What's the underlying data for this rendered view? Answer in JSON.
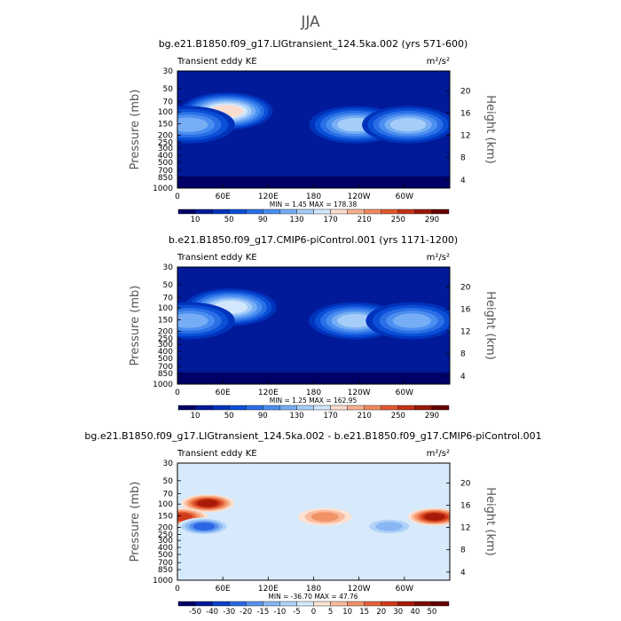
{
  "page_title": "JJA",
  "panels": [
    {
      "title": "bg.e21.B1850.f09_g17.LIGtransient_124.5ka.002 (yrs 571-600)",
      "left_label": "Transient eddy KE",
      "units": "m²/s²",
      "stats": "MIN =    1.45   MAX = 178.38",
      "colorbar_labels": [
        "10",
        "50",
        "90",
        "130",
        "170",
        "210",
        "250",
        "290"
      ]
    },
    {
      "title": "b.e21.B1850.f09_g17.CMIP6-piControl.001 (yrs 1171-1200)",
      "left_label": "Transient eddy KE",
      "units": "m²/s²",
      "stats": "MIN =    1.25   MAX = 162.95",
      "colorbar_labels": [
        "10",
        "50",
        "90",
        "130",
        "170",
        "210",
        "250",
        "290"
      ]
    },
    {
      "title": "bg.e21.B1850.f09_g17.LIGtransient_124.5ka.002 - b.e21.B1850.f09_g17.CMIP6-piControl.001",
      "left_label": "Transient eddy KE",
      "units": "m²/s²",
      "stats": "MIN =  -36.70   MAX =  47.76",
      "colorbar_labels": [
        "-50",
        "-40",
        "-30",
        "-20",
        "-15",
        "-10",
        "-5",
        "0",
        "5",
        "10",
        "15",
        "20",
        "30",
        "40",
        "50"
      ]
    }
  ],
  "chart_data": [
    {
      "type": "heatmap",
      "title": "bg.e21.B1850.f09_g17.LIGtransient_124.5ka.002 (yrs 571-600)",
      "ylabel": "Pressure (mb)",
      "ylabel_right": "Height (km)",
      "x_ticks": [
        "0",
        "60E",
        "120E",
        "180",
        "120W",
        "60W"
      ],
      "y_ticks": [
        "30",
        "50",
        "70",
        "100",
        "150",
        "200",
        "250",
        "300",
        "400",
        "500",
        "700",
        "850",
        "1000"
      ],
      "y_right_ticks": [
        "20",
        "16",
        "12",
        "8",
        "4"
      ],
      "min": 1.45,
      "max": 178.38,
      "colorbar_levels": [
        10,
        30,
        50,
        70,
        90,
        110,
        130,
        150,
        170,
        190,
        210,
        230,
        250,
        270,
        290
      ],
      "maxima": [
        {
          "lon": 65,
          "p": 100,
          "value": 170
        },
        {
          "lon": 15,
          "p": 150,
          "value": 110
        },
        {
          "lon": 235,
          "p": 150,
          "value": 130
        },
        {
          "lon": 305,
          "p": 150,
          "value": 120
        }
      ]
    },
    {
      "type": "heatmap",
      "title": "b.e21.B1850.f09_g17.CMIP6-piControl.001 (yrs 1171-1200)",
      "ylabel": "Pressure (mb)",
      "ylabel_right": "Height (km)",
      "x_ticks": [
        "0",
        "60E",
        "120E",
        "180",
        "120W",
        "60W"
      ],
      "y_ticks": [
        "30",
        "50",
        "70",
        "100",
        "150",
        "200",
        "250",
        "300",
        "400",
        "500",
        "700",
        "850",
        "1000"
      ],
      "y_right_ticks": [
        "20",
        "16",
        "12",
        "8",
        "4"
      ],
      "min": 1.25,
      "max": 162.95,
      "colorbar_levels": [
        10,
        30,
        50,
        70,
        90,
        110,
        130,
        150,
        170,
        190,
        210,
        230,
        250,
        270,
        290
      ],
      "maxima": [
        {
          "lon": 70,
          "p": 100,
          "value": 155
        },
        {
          "lon": 15,
          "p": 150,
          "value": 100
        },
        {
          "lon": 235,
          "p": 150,
          "value": 120
        },
        {
          "lon": 310,
          "p": 150,
          "value": 110
        }
      ]
    },
    {
      "type": "heatmap",
      "title": "bg.e21.B1850.f09_g17.LIGtransient_124.5ka.002 - b.e21.B1850.f09_g17.CMIP6-piControl.001",
      "ylabel": "Pressure (mb)",
      "ylabel_right": "Height (km)",
      "x_ticks": [
        "0",
        "60E",
        "120E",
        "180",
        "120W",
        "60W"
      ],
      "y_ticks": [
        "30",
        "50",
        "70",
        "100",
        "150",
        "200",
        "250",
        "300",
        "400",
        "500",
        "700",
        "850",
        "1000"
      ],
      "y_right_ticks": [
        "20",
        "16",
        "12",
        "8",
        "4"
      ],
      "min": -36.7,
      "max": 47.76,
      "colorbar_levels": [
        -50,
        -40,
        -30,
        -20,
        -15,
        -10,
        -5,
        0,
        5,
        10,
        15,
        20,
        30,
        40,
        50
      ],
      "maxima": [
        {
          "lon": 40,
          "p": 100,
          "value": 45
        },
        {
          "lon": 5,
          "p": 150,
          "value": 40
        },
        {
          "lon": 340,
          "p": 150,
          "value": 47
        },
        {
          "lon": 195,
          "p": 150,
          "value": 20
        },
        {
          "lon": 35,
          "p": 200,
          "value": -36
        },
        {
          "lon": 280,
          "p": 200,
          "value": -25
        }
      ]
    }
  ],
  "colors": {
    "abs_scale": [
      "#000066",
      "#001a99",
      "#0033bb",
      "#0a4fd6",
      "#2a6fe6",
      "#4a8ef0",
      "#76adf4",
      "#a5cdf8",
      "#d3e7fc",
      "#fcdccd",
      "#f7b08f",
      "#ef8a5e",
      "#e2582f",
      "#c43218",
      "#981809",
      "#660000"
    ],
    "diff_scale": [
      "#000066",
      "#001a99",
      "#0a40c8",
      "#2b67e3",
      "#5a93ee",
      "#88b7f4",
      "#b1d2f8",
      "#d7eafc",
      "#fde2d2",
      "#f9bb9d",
      "#f29267",
      "#e4633a",
      "#cf3a1a",
      "#a81a08",
      "#7a0d02",
      "#660000"
    ]
  }
}
